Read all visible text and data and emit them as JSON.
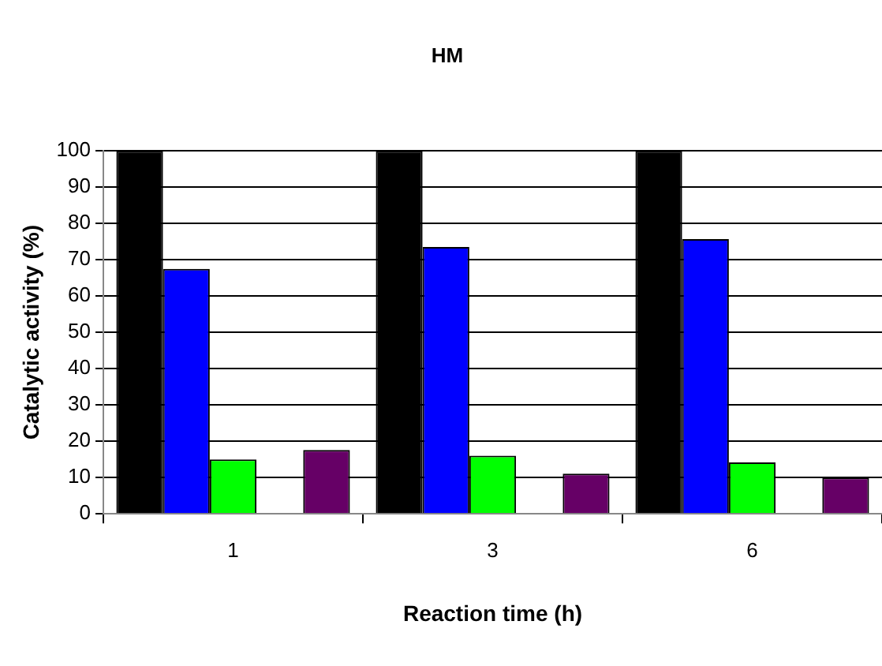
{
  "chart_data": {
    "type": "bar",
    "title": "HM",
    "xlabel": "Reaction time (h)",
    "ylabel": "Catalytic activity (%)",
    "categories": [
      "1",
      "3",
      "6"
    ],
    "series": [
      {
        "color": "#000000",
        "values": [
          100,
          100,
          100
        ]
      },
      {
        "color": "#0000ff",
        "values": [
          67.5,
          73.5,
          75.7
        ]
      },
      {
        "color": "#00ff00",
        "values": [
          15,
          16,
          14.2
        ]
      },
      {
        "color": "#ffffff",
        "values": [
          null,
          null,
          null
        ]
      },
      {
        "color": "#660066",
        "values": [
          17.6,
          11.1,
          10
        ]
      }
    ],
    "ylim": [
      0,
      100
    ],
    "yticks": [
      0,
      10,
      20,
      30,
      40,
      50,
      60,
      70,
      80,
      90,
      100
    ],
    "grid": "y",
    "legend": false
  }
}
